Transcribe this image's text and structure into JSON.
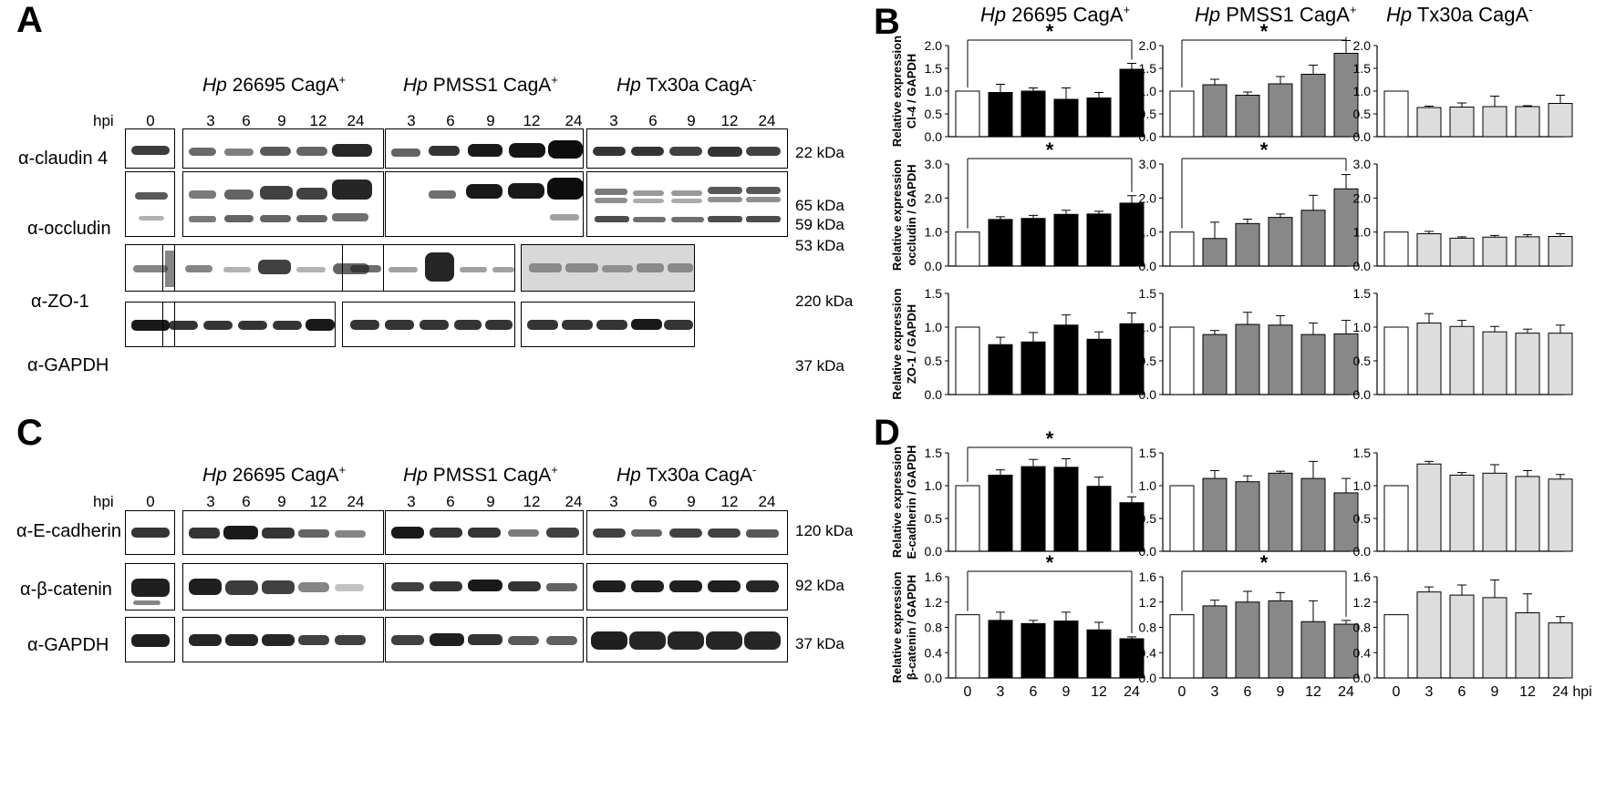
{
  "panels": {
    "A": "A",
    "B": "B",
    "C": "C",
    "D": "D"
  },
  "blots": {
    "A": {
      "groups": [
        {
          "italic": "Hp",
          "rest": " 26695 CagA",
          "sup": "+"
        },
        {
          "italic": "Hp",
          "rest": " PMSS1 CagA",
          "sup": "+"
        },
        {
          "italic": "Hp",
          "rest": " Tx30a CagA",
          "sup": "-"
        }
      ],
      "hpi_label": "hpi",
      "control_time": "0",
      "times": [
        "3",
        "6",
        "9",
        "12",
        "24"
      ],
      "rows": [
        {
          "label": "α-claudin 4",
          "kda": [
            "22 kDa"
          ]
        },
        {
          "label": "α-occludin",
          "kda": [
            "65 kDa",
            "59 kDa",
            "53 kDa"
          ]
        },
        {
          "label": "α-ZO-1",
          "kda": [
            "220 kDa"
          ]
        },
        {
          "label": "α-GAPDH",
          "kda": [
            "37 kDa"
          ]
        }
      ]
    },
    "C": {
      "groups": [
        {
          "italic": "Hp",
          "rest": " 26695 CagA",
          "sup": "+"
        },
        {
          "italic": "Hp",
          "rest": " PMSS1 CagA",
          "sup": "+"
        },
        {
          "italic": "Hp",
          "rest": " Tx30a CagA",
          "sup": "-"
        }
      ],
      "hpi_label": "hpi",
      "control_time": "0",
      "times": [
        "3",
        "6",
        "9",
        "12",
        "24"
      ],
      "rows": [
        {
          "label": "α-E-cadherin",
          "kda": [
            "120 kDa"
          ]
        },
        {
          "label": "α-β-catenin",
          "kda": [
            "92 kDa"
          ]
        },
        {
          "label": "α-GAPDH",
          "kda": [
            "37 kDa"
          ]
        }
      ]
    }
  },
  "chart_column_titles": [
    {
      "italic": "Hp",
      "rest": " 26695 CagA",
      "sup": "+"
    },
    {
      "italic": "Hp",
      "rest": " PMSS1 CagA",
      "sup": "+"
    },
    {
      "italic": "Hp",
      "rest": " Tx30a CagA",
      "sup": "-"
    }
  ],
  "chart_x_label": "hpi",
  "chart_data": [
    {
      "type": "bar",
      "panel": "B",
      "row": 0,
      "col": 0,
      "ylabel": [
        "Relative expression",
        "Cl-4 / GAPDH"
      ],
      "categories": [
        "0",
        "3",
        "6",
        "9",
        "12",
        "24"
      ],
      "values": [
        1.0,
        0.97,
        1.0,
        0.82,
        0.85,
        1.48
      ],
      "errors": [
        0,
        0.18,
        0.07,
        0.25,
        0.12,
        0.13
      ],
      "ylim": [
        0,
        2.0
      ],
      "yticks": [
        "0.0",
        "0.5",
        "1.0",
        "1.5",
        "2.0"
      ],
      "significance": "*",
      "fill": "#000000"
    },
    {
      "type": "bar",
      "panel": "B",
      "row": 0,
      "col": 1,
      "ylabel": [],
      "categories": [
        "0",
        "3",
        "6",
        "9",
        "12",
        "24"
      ],
      "values": [
        1.0,
        1.14,
        0.91,
        1.16,
        1.37,
        1.83
      ],
      "errors": [
        0,
        0.12,
        0.07,
        0.16,
        0.2,
        0.28
      ],
      "ylim": [
        0,
        2.0
      ],
      "yticks": [
        "0.0",
        "0.5",
        "1.0",
        "1.5",
        "2.0"
      ],
      "significance": "*",
      "fill": "#888888"
    },
    {
      "type": "bar",
      "panel": "B",
      "row": 0,
      "col": 2,
      "ylabel": [],
      "categories": [
        "0",
        "3",
        "6",
        "9",
        "12",
        "24"
      ],
      "values": [
        1.0,
        0.64,
        0.65,
        0.66,
        0.66,
        0.73
      ],
      "errors": [
        0,
        0.03,
        0.09,
        0.23,
        0.02,
        0.18
      ],
      "ylim": [
        0,
        2.0
      ],
      "yticks": [
        "0.0",
        "0.5",
        "1.0",
        "1.5",
        "2.0"
      ],
      "significance": "",
      "fill": "#dddddd"
    },
    {
      "type": "bar",
      "panel": "B",
      "row": 1,
      "col": 0,
      "ylabel": [
        "Relative expression",
        "occludin / GAPDH"
      ],
      "categories": [
        "0",
        "3",
        "6",
        "9",
        "12",
        "24"
      ],
      "values": [
        1.0,
        1.37,
        1.4,
        1.52,
        1.53,
        1.85
      ],
      "errors": [
        0,
        0.08,
        0.09,
        0.12,
        0.08,
        0.22
      ],
      "ylim": [
        0,
        3.0
      ],
      "yticks": [
        "0.0",
        "1.0",
        "2.0",
        "3.0"
      ],
      "significance": "*",
      "fill": "#000000"
    },
    {
      "type": "bar",
      "panel": "B",
      "row": 1,
      "col": 1,
      "ylabel": [],
      "categories": [
        "0",
        "3",
        "6",
        "9",
        "12",
        "24"
      ],
      "values": [
        1.0,
        0.81,
        1.25,
        1.43,
        1.64,
        2.27
      ],
      "errors": [
        0,
        0.48,
        0.13,
        0.1,
        0.44,
        0.42
      ],
      "ylim": [
        0,
        3.0
      ],
      "yticks": [
        "0.0",
        "1.0",
        "2.0",
        "3.0"
      ],
      "significance": "*",
      "fill": "#888888"
    },
    {
      "type": "bar",
      "panel": "B",
      "row": 1,
      "col": 2,
      "ylabel": [],
      "categories": [
        "0",
        "3",
        "6",
        "9",
        "12",
        "24"
      ],
      "values": [
        1.0,
        0.95,
        0.82,
        0.85,
        0.86,
        0.87
      ],
      "errors": [
        0,
        0.07,
        0.04,
        0.05,
        0.06,
        0.08
      ],
      "ylim": [
        0,
        3.0
      ],
      "yticks": [
        "0.0",
        "1.0",
        "2.0",
        "3.0"
      ],
      "significance": "",
      "fill": "#dddddd"
    },
    {
      "type": "bar",
      "panel": "B",
      "row": 2,
      "col": 0,
      "ylabel": [
        "Relative expression",
        "ZO-1 / GAPDH"
      ],
      "categories": [
        "0",
        "3",
        "6",
        "9",
        "12",
        "24"
      ],
      "values": [
        1.0,
        0.74,
        0.78,
        1.03,
        0.82,
        1.05
      ],
      "errors": [
        0,
        0.11,
        0.14,
        0.15,
        0.11,
        0.16
      ],
      "ylim": [
        0,
        1.5
      ],
      "yticks": [
        "0.0",
        "0.5",
        "1.0",
        "1.5"
      ],
      "significance": "",
      "fill": "#000000"
    },
    {
      "type": "bar",
      "panel": "B",
      "row": 2,
      "col": 1,
      "ylabel": [],
      "categories": [
        "0",
        "3",
        "6",
        "9",
        "12",
        "24"
      ],
      "values": [
        1.0,
        0.89,
        1.04,
        1.03,
        0.89,
        0.9
      ],
      "errors": [
        0,
        0.06,
        0.18,
        0.14,
        0.17,
        0.2
      ],
      "ylim": [
        0,
        1.5
      ],
      "yticks": [
        "0.0",
        "0.5",
        "1.0",
        "1.5"
      ],
      "significance": "",
      "fill": "#888888"
    },
    {
      "type": "bar",
      "panel": "B",
      "row": 2,
      "col": 2,
      "ylabel": [],
      "categories": [
        "0",
        "3",
        "6",
        "9",
        "12",
        "24"
      ],
      "values": [
        1.0,
        1.06,
        1.01,
        0.93,
        0.91,
        0.91
      ],
      "errors": [
        0,
        0.14,
        0.09,
        0.08,
        0.06,
        0.12
      ],
      "ylim": [
        0,
        1.5
      ],
      "yticks": [
        "0.0",
        "0.5",
        "1.0",
        "1.5"
      ],
      "significance": "",
      "fill": "#dddddd"
    },
    {
      "type": "bar",
      "panel": "D",
      "row": 0,
      "col": 0,
      "ylabel": [
        "Relative expression",
        "E-cadherin / GAPDH"
      ],
      "categories": [
        "0",
        "3",
        "6",
        "9",
        "12",
        "24"
      ],
      "values": [
        1.0,
        1.16,
        1.29,
        1.28,
        0.99,
        0.74
      ],
      "errors": [
        0,
        0.08,
        0.11,
        0.13,
        0.14,
        0.09
      ],
      "ylim": [
        0,
        1.5
      ],
      "yticks": [
        "0.0",
        "0.5",
        "1.0",
        "1.5"
      ],
      "significance": "*",
      "fill": "#000000"
    },
    {
      "type": "bar",
      "panel": "D",
      "row": 0,
      "col": 1,
      "ylabel": [],
      "categories": [
        "0",
        "3",
        "6",
        "9",
        "12",
        "24"
      ],
      "values": [
        1.0,
        1.11,
        1.06,
        1.19,
        1.11,
        0.89
      ],
      "errors": [
        0,
        0.12,
        0.09,
        0.03,
        0.26,
        0.22
      ],
      "ylim": [
        0,
        1.5
      ],
      "yticks": [
        "0.0",
        "0.5",
        "1.0",
        "1.5"
      ],
      "significance": "",
      "fill": "#888888"
    },
    {
      "type": "bar",
      "panel": "D",
      "row": 0,
      "col": 2,
      "ylabel": [],
      "categories": [
        "0",
        "3",
        "6",
        "9",
        "12",
        "24"
      ],
      "values": [
        1.0,
        1.33,
        1.16,
        1.19,
        1.14,
        1.1
      ],
      "errors": [
        0,
        0.04,
        0.04,
        0.13,
        0.09,
        0.07
      ],
      "ylim": [
        0,
        1.5
      ],
      "yticks": [
        "0.0",
        "0.5",
        "1.0",
        "1.5"
      ],
      "significance": "",
      "fill": "#dddddd"
    },
    {
      "type": "bar",
      "panel": "D",
      "row": 1,
      "col": 0,
      "ylabel": [
        "Relative expression",
        "β-catenin / GAPDH"
      ],
      "categories": [
        "0",
        "3",
        "6",
        "9",
        "12",
        "24"
      ],
      "values": [
        1.0,
        0.91,
        0.86,
        0.9,
        0.76,
        0.62
      ],
      "errors": [
        0,
        0.13,
        0.05,
        0.14,
        0.12,
        0.03
      ],
      "ylim": [
        0,
        1.6
      ],
      "yticks": [
        "0.0",
        "0.4",
        "0.8",
        "1.2",
        "1.6"
      ],
      "significance": "*",
      "fill": "#000000"
    },
    {
      "type": "bar",
      "panel": "D",
      "row": 1,
      "col": 1,
      "ylabel": [],
      "categories": [
        "0",
        "3",
        "6",
        "9",
        "12",
        "24"
      ],
      "values": [
        1.0,
        1.14,
        1.2,
        1.22,
        0.89,
        0.85
      ],
      "errors": [
        0,
        0.09,
        0.17,
        0.13,
        0.33,
        0.06
      ],
      "ylim": [
        0,
        1.6
      ],
      "yticks": [
        "0.0",
        "0.4",
        "0.8",
        "1.2",
        "1.6"
      ],
      "significance": "*",
      "fill": "#888888"
    },
    {
      "type": "bar",
      "panel": "D",
      "row": 1,
      "col": 2,
      "ylabel": [],
      "categories": [
        "0",
        "3",
        "6",
        "9",
        "12",
        "24"
      ],
      "values": [
        1.0,
        1.36,
        1.31,
        1.27,
        1.03,
        0.87
      ],
      "errors": [
        0,
        0.08,
        0.16,
        0.28,
        0.3,
        0.1
      ],
      "ylim": [
        0,
        1.6
      ],
      "yticks": [
        "0.0",
        "0.4",
        "0.8",
        "1.2",
        "1.6"
      ],
      "significance": "",
      "fill": "#dddddd"
    }
  ]
}
